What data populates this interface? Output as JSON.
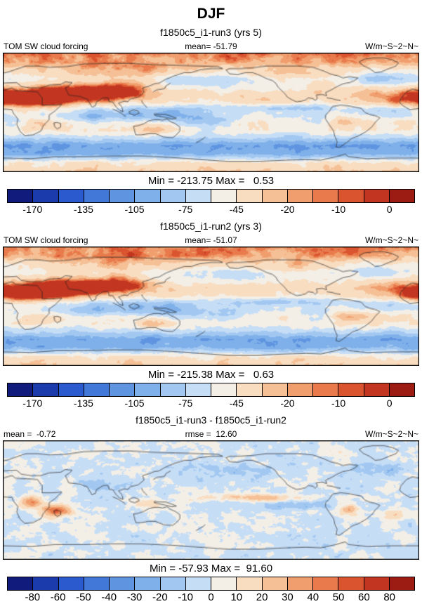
{
  "title": "DJF",
  "chart_data": [
    {
      "type": "heatmap",
      "subtype": "global-map-equirectangular-0-360E",
      "season": "DJF",
      "title": "f1850c5_i1-run3 (yrs 5)",
      "left_stat": "TOM SW cloud forcing",
      "center_stat": "mean= -51.79",
      "units": "W/m~S~2~N~",
      "mean": -51.79,
      "min": -213.75,
      "max": 0.53,
      "minmax_label": "Min = -213.75 Max =   0.53",
      "map_kind": "forcing",
      "seed": 7,
      "colorbar": {
        "levels": [
          -170,
          -150,
          -135,
          -120,
          -105,
          -90,
          -75,
          -60,
          -45,
          -30,
          -20,
          -15,
          -10,
          -5,
          0
        ],
        "tick_labels": [
          "-170",
          "-135",
          "-105",
          "-75",
          "-45",
          "-20",
          "-10",
          "0"
        ],
        "colors": [
          "#111b7c",
          "#1b3aab",
          "#2b5ace",
          "#4279d8",
          "#5e94e0",
          "#7fb0ea",
          "#a2c8f1",
          "#c6ddf6",
          "#f3efe7",
          "#f9ddc1",
          "#f6c096",
          "#f09e6d",
          "#e87a4b",
          "#da5430",
          "#c23520",
          "#9c1b13"
        ]
      }
    },
    {
      "type": "heatmap",
      "subtype": "global-map-equirectangular-0-360E",
      "season": "DJF",
      "title": "f1850c5_i1-run2 (yrs 3)",
      "left_stat": "TOM SW cloud forcing",
      "center_stat": "mean= -51.07",
      "units": "W/m~S~2~N~",
      "mean": -51.07,
      "min": -215.38,
      "max": 0.63,
      "minmax_label": "Min = -215.38 Max =   0.63",
      "map_kind": "forcing",
      "seed": 13,
      "colorbar": {
        "levels": [
          -170,
          -150,
          -135,
          -120,
          -105,
          -90,
          -75,
          -60,
          -45,
          -30,
          -20,
          -15,
          -10,
          -5,
          0
        ],
        "tick_labels": [
          "-170",
          "-135",
          "-105",
          "-75",
          "-45",
          "-20",
          "-10",
          "0"
        ],
        "colors": [
          "#111b7c",
          "#1b3aab",
          "#2b5ace",
          "#4279d8",
          "#5e94e0",
          "#7fb0ea",
          "#a2c8f1",
          "#c6ddf6",
          "#f3efe7",
          "#f9ddc1",
          "#f6c096",
          "#f09e6d",
          "#e87a4b",
          "#da5430",
          "#c23520",
          "#9c1b13"
        ]
      }
    },
    {
      "type": "heatmap",
      "subtype": "global-map-equirectangular-0-360E",
      "season": "DJF",
      "title": "f1850c5_i1-run3 - f1850c5_i1-run2",
      "left_stat": "mean =  -0.72",
      "center_stat": "rmse =  12.60",
      "units": "W/m~S~2~N~",
      "mean": -0.72,
      "rmse": 12.6,
      "min": -57.93,
      "max": 91.6,
      "minmax_label": "Min = -57.93 Max =  91.60",
      "map_kind": "diff",
      "seed": 21,
      "colorbar": {
        "levels": [
          -80,
          -60,
          -50,
          -40,
          -30,
          -20,
          -10,
          0,
          10,
          20,
          30,
          40,
          50,
          60,
          80
        ],
        "tick_labels": [
          "-80",
          "-60",
          "-50",
          "-40",
          "-30",
          "-20",
          "-10",
          "0",
          "10",
          "20",
          "30",
          "40",
          "50",
          "60",
          "80"
        ],
        "colors": [
          "#111b7c",
          "#1b3aab",
          "#2b5ace",
          "#4279d8",
          "#5e94e0",
          "#7fb0ea",
          "#a2c8f1",
          "#c6ddf6",
          "#f3efe7",
          "#f9ddc1",
          "#f6c096",
          "#f09e6d",
          "#e87a4b",
          "#da5430",
          "#c23520",
          "#9c1b13"
        ]
      }
    }
  ]
}
